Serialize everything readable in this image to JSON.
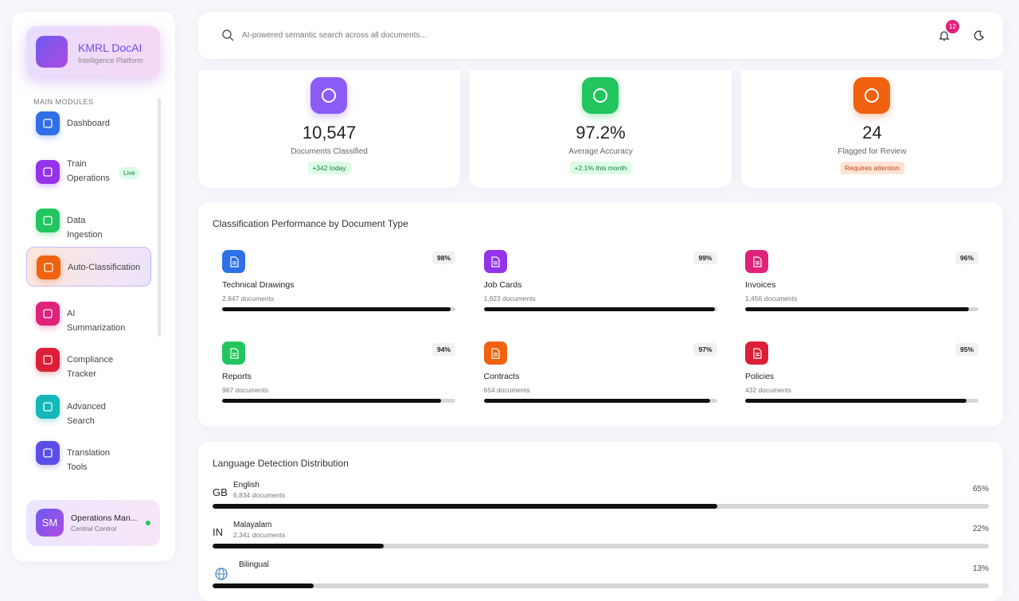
{
  "brand": {
    "title": "KMRL DocAI",
    "subtitle": "Intelligence Platform"
  },
  "sidebar": {
    "section": "MAIN MODULES",
    "items": [
      {
        "label": "Dashboard",
        "color": "#2f6fe8"
      },
      {
        "label": "Train Operations",
        "badge": "Live",
        "color": "#9333ea"
      },
      {
        "label": "Data Ingestion",
        "color": "#22c55e"
      },
      {
        "label": "Auto-Classification",
        "color": "#f0620f",
        "active": true
      },
      {
        "label": "AI Summarization",
        "color": "#e0227a"
      },
      {
        "label": "Compliance Tracker",
        "color": "#dc1f36"
      },
      {
        "label": "Advanced Search",
        "color": "#14b8b8"
      },
      {
        "label": "Translation Tools",
        "color": "#5b4ee8"
      }
    ],
    "user": {
      "initials": "SM",
      "name": "Operations Man...",
      "role": "Central Control"
    }
  },
  "search": {
    "placeholder": "AI-powered semantic search across all documents..."
  },
  "notifications": "12",
  "stats": [
    {
      "value": "10,547",
      "label": "Documents Classified",
      "tag": "+342 today",
      "color": "#8b5cf6",
      "tag_style": "good"
    },
    {
      "value": "97.2%",
      "label": "Average Accuracy",
      "tag": "+2.1% this month",
      "color": "#22c55e",
      "tag_style": "good"
    },
    {
      "value": "24",
      "label": "Flagged for Review",
      "tag": "Requires attention",
      "color": "#f0620f",
      "tag_style": "warn"
    }
  ],
  "performance": {
    "title": "Classification Performance by Document Type",
    "items": [
      {
        "name": "Technical Drawings",
        "count": "2,847 documents",
        "value": 98,
        "value_label": "98%",
        "color": "#2f6fe8"
      },
      {
        "name": "Job Cards",
        "count": "1,923 documents",
        "value": 99,
        "value_label": "99%",
        "color": "#9333ea"
      },
      {
        "name": "Invoices",
        "count": "1,456 documents",
        "value": 96,
        "value_label": "96%",
        "color": "#e0227a"
      },
      {
        "name": "Reports",
        "count": "987 documents",
        "value": 94,
        "value_label": "94%",
        "color": "#22c55e"
      },
      {
        "name": "Contracts",
        "count": "654 documents",
        "value": 97,
        "value_label": "97%",
        "color": "#f0620f"
      },
      {
        "name": "Policies",
        "count": "432 documents",
        "value": 95,
        "value_label": "95%",
        "color": "#dc1f36"
      }
    ]
  },
  "languages": {
    "title": "Language Detection Distribution",
    "items": [
      {
        "code": "GB",
        "name": "English",
        "count": "6,834 documents",
        "value": 65,
        "value_label": "65%"
      },
      {
        "code": "IN",
        "name": "Malayalam",
        "count": "2,341 documents",
        "value": 22,
        "value_label": "22%"
      },
      {
        "name": "Bilingual",
        "value": 13,
        "value_label": "13%"
      }
    ]
  }
}
